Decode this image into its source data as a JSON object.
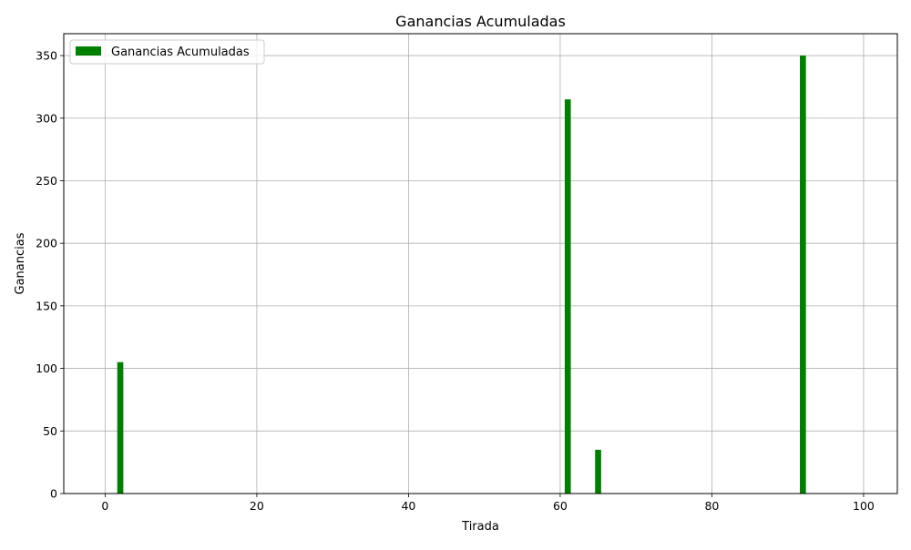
{
  "chart_data": {
    "type": "bar",
    "title": "Ganancias Acumuladas",
    "xlabel": "Tirada",
    "ylabel": "Ganancias",
    "xlim": [
      -5.45,
      104.45
    ],
    "ylim": [
      0,
      367.5
    ],
    "xticks": [
      0,
      20,
      40,
      60,
      80,
      100
    ],
    "yticks": [
      0,
      50,
      100,
      150,
      200,
      250,
      300,
      350
    ],
    "grid": true,
    "legend_position": "top-left",
    "series": [
      {
        "name": "Ganancias Acumuladas",
        "color": "#008000",
        "bar_width": 0.8,
        "points": [
          {
            "x": 2,
            "y": 105
          },
          {
            "x": 61,
            "y": 315
          },
          {
            "x": 65,
            "y": 35
          },
          {
            "x": 92,
            "y": 350
          }
        ]
      }
    ]
  }
}
